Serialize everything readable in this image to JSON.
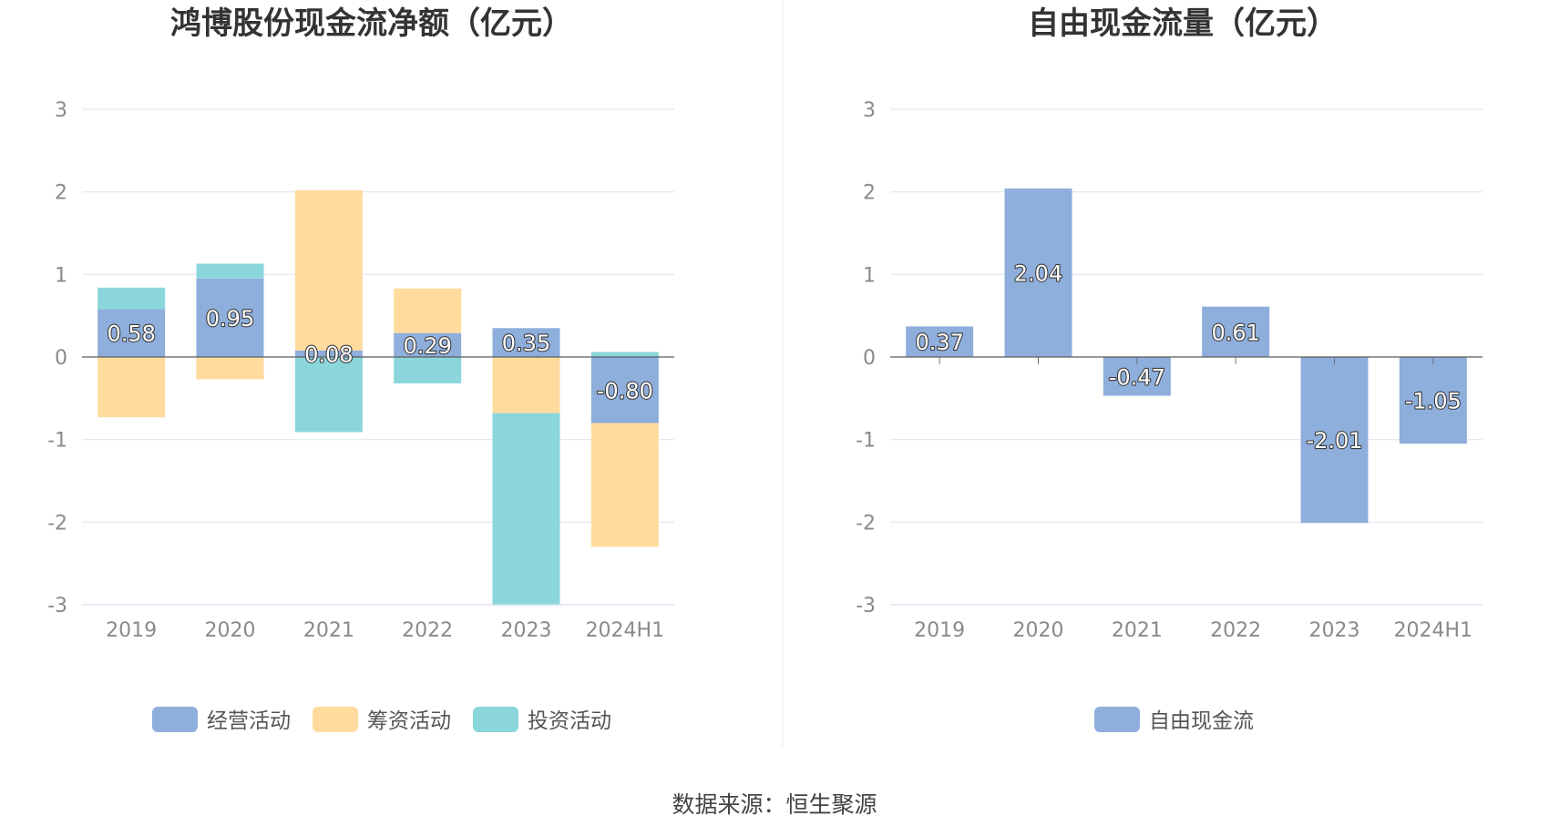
{
  "source_text": "数据来源：恒生聚源",
  "chart_data": [
    {
      "type": "bar",
      "stacked": true,
      "title": "鸿博股份现金流净额（亿元）",
      "categories": [
        "2019",
        "2020",
        "2021",
        "2022",
        "2023",
        "2024H1"
      ],
      "ylim": [
        -3,
        3
      ],
      "yticks": [
        3,
        2,
        1,
        0,
        -1,
        -2,
        -3
      ],
      "grid": true,
      "legend_position": "bottom",
      "series": [
        {
          "name": "经营活动",
          "color": "#8eaedb",
          "values": [
            0.58,
            0.95,
            0.08,
            0.29,
            0.35,
            -0.8
          ]
        },
        {
          "name": "筹资活动",
          "color": "#ffdb9e",
          "values": [
            -0.73,
            -0.27,
            1.94,
            0.54,
            -0.68,
            -1.5
          ]
        },
        {
          "name": "投资活动",
          "color": "#8ad6da",
          "values": [
            0.26,
            0.18,
            -0.91,
            -0.32,
            -2.33,
            0.06
          ]
        }
      ],
      "data_labels": [
        "0.58",
        "0.95",
        "0.08",
        "0.29",
        "0.35",
        "-0.80"
      ]
    },
    {
      "type": "bar",
      "title": "自由现金流量（亿元）",
      "categories": [
        "2019",
        "2020",
        "2021",
        "2022",
        "2023",
        "2024H1"
      ],
      "ylim": [
        -3,
        3
      ],
      "yticks": [
        3,
        2,
        1,
        0,
        -1,
        -2,
        -3
      ],
      "grid": true,
      "legend_position": "bottom",
      "series": [
        {
          "name": "自由现金流",
          "color": "#8eaedb",
          "values": [
            0.37,
            2.04,
            -0.47,
            0.61,
            -2.01,
            -1.05
          ]
        }
      ],
      "data_labels": [
        "0.37",
        "2.04",
        "-0.47",
        "0.61",
        "-2.01",
        "-1.05"
      ]
    }
  ]
}
